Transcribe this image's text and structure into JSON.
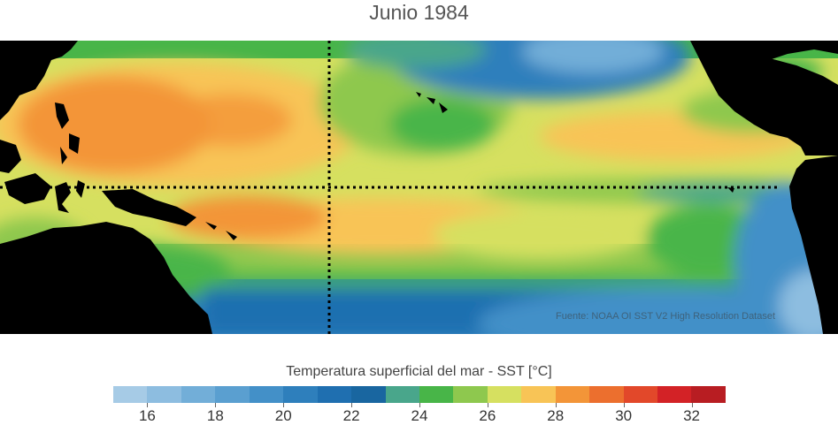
{
  "title": "Junio 1984",
  "source_credit": "Fuente: NOAA OI SST V2 High Resolution Dataset",
  "colorbar": {
    "label": "Temperatura superficial del mar - SST  [°C]",
    "ticks": [
      "16",
      "18",
      "20",
      "22",
      "24",
      "26",
      "28",
      "30",
      "32"
    ],
    "range": [
      15,
      33
    ],
    "colors": [
      "#a6cbe6",
      "#8dbde0",
      "#72aed8",
      "#5a9fd0",
      "#4390c8",
      "#2e7fbc",
      "#1f6fb0",
      "#1966a0",
      "#49a68b",
      "#48b548",
      "#8ec84e",
      "#d6e060",
      "#f8c456",
      "#f39538",
      "#ec6f2e",
      "#e2482a",
      "#d32226",
      "#b81d22"
    ]
  },
  "map": {
    "land_color": "#000000",
    "reference_lines": [
      "equator",
      "180-meridian"
    ]
  }
}
